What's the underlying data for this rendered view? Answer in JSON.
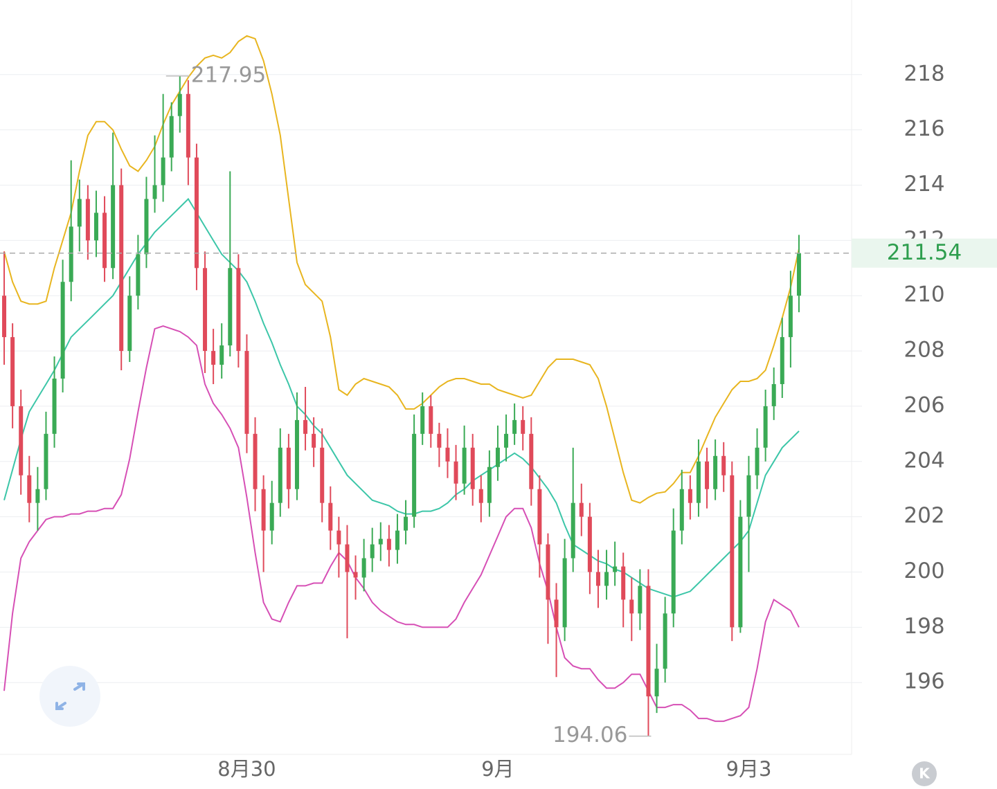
{
  "chart_data": {
    "type": "candlestick",
    "categories": [
      null,
      null,
      null,
      null,
      null,
      null,
      null,
      null,
      null,
      null,
      null,
      null,
      null,
      null,
      null,
      null,
      null,
      null,
      null,
      null,
      null,
      null,
      null,
      null,
      null,
      null,
      null,
      null,
      null,
      "8月30",
      null,
      null,
      null,
      null,
      null,
      null,
      null,
      null,
      null,
      null,
      null,
      null,
      null,
      null,
      null,
      null,
      null,
      null,
      null,
      null,
      null,
      null,
      null,
      null,
      null,
      null,
      null,
      null,
      null,
      "9月",
      null,
      null,
      null,
      null,
      null,
      null,
      null,
      null,
      null,
      null,
      null,
      null,
      null,
      null,
      null,
      null,
      null,
      null,
      null,
      null,
      null,
      null,
      null,
      null,
      null,
      null,
      null,
      null,
      null,
      "9月3",
      null,
      null,
      null,
      null,
      null,
      null
    ],
    "open": [
      210,
      208.5,
      206,
      203.5,
      202.5,
      203,
      205,
      207,
      210.5,
      212.5,
      213.5,
      212,
      213,
      211,
      214,
      208,
      210,
      211.5,
      213.5,
      214,
      215,
      216.5,
      217.3,
      215,
      211,
      208,
      207.5,
      208.2,
      211,
      208,
      205,
      203,
      201.5,
      202.5,
      204.5,
      203,
      205.5,
      205,
      204.5,
      202.5,
      201.5,
      201,
      200,
      199.8,
      200.5,
      201,
      201.2,
      200.8,
      201.5,
      202,
      205,
      206,
      205,
      204.5,
      204,
      203.2,
      204.5,
      203,
      202.5,
      203.8,
      204.5,
      205,
      205.5,
      205,
      203,
      201,
      199,
      198,
      200.5,
      202.5,
      202,
      200,
      199.5,
      200,
      200.2,
      199,
      198.5,
      199.5,
      195.5,
      196.5,
      198.5,
      201.5,
      203,
      202.5,
      204,
      203,
      204.2,
      203.5,
      198,
      202,
      203.5,
      204.5,
      206,
      206.8,
      208.5,
      210
    ],
    "high": [
      211.6,
      209,
      206.6,
      204.2,
      203.8,
      205.8,
      207.8,
      211.3,
      214.9,
      214.2,
      214,
      213.8,
      213.6,
      215.9,
      214.6,
      210.7,
      212.2,
      214.3,
      215.8,
      217.3,
      217,
      217.95,
      217.8,
      215.5,
      211.6,
      208.8,
      209,
      214.5,
      211.5,
      208.6,
      205.6,
      203.5,
      203.3,
      205.2,
      205,
      206.5,
      206.7,
      205.6,
      205.2,
      203.1,
      202,
      201.7,
      200.6,
      201.2,
      201.6,
      201.8,
      201.7,
      202.1,
      202.6,
      205.7,
      206.5,
      206.4,
      205.4,
      205.2,
      204.6,
      205.3,
      205,
      203.5,
      204.4,
      205.3,
      205.7,
      206.1,
      206,
      205.6,
      203.5,
      201.4,
      199.6,
      201.2,
      204.5,
      203.2,
      202.5,
      200.8,
      200.8,
      201.1,
      200.7,
      199.8,
      200.1,
      200.1,
      197.4,
      199.1,
      202.3,
      203.7,
      203.5,
      204.8,
      204.5,
      204.8,
      204.7,
      204,
      202.6,
      204.2,
      205.2,
      206.6,
      207.4,
      209.2,
      210.9,
      212.2
    ],
    "low": [
      207.5,
      205.2,
      202.8,
      201.8,
      201.5,
      202.6,
      204.5,
      206.5,
      209.8,
      211.6,
      211.3,
      211.4,
      210.5,
      210.6,
      207.3,
      207.6,
      209.5,
      211,
      213,
      213.4,
      214.5,
      215.9,
      214,
      210.2,
      207.2,
      206.8,
      207,
      207.8,
      207.4,
      204.3,
      202.2,
      200,
      201,
      202,
      202.3,
      202.6,
      204.4,
      203.8,
      201.8,
      200.8,
      199.8,
      197.6,
      199,
      199.3,
      200,
      200.4,
      200.2,
      200.3,
      201,
      201.6,
      204.6,
      204.5,
      203.8,
      203.4,
      202.6,
      202.8,
      202.4,
      201.8,
      202,
      203.3,
      204,
      204.6,
      204.4,
      202.4,
      199.8,
      197.4,
      196.2,
      197.5,
      200,
      201.3,
      199.2,
      198.7,
      199,
      199.5,
      198,
      197.5,
      197.9,
      194.06,
      194.9,
      196,
      198,
      201,
      201.9,
      202,
      202.3,
      202.6,
      202.9,
      197.5,
      197.8,
      200,
      203,
      204,
      205.5,
      206.3,
      207.4,
      209.4
    ],
    "close": [
      208.5,
      206,
      203.5,
      202.5,
      203,
      205,
      207,
      210.5,
      212.5,
      213.5,
      212,
      213,
      211,
      214,
      208,
      210,
      211.5,
      213.5,
      214,
      215,
      216.5,
      217.3,
      215,
      211,
      208,
      207.5,
      208.2,
      211,
      208,
      205,
      203,
      201.5,
      202.5,
      204.5,
      203,
      205.5,
      205,
      204.5,
      202.5,
      201.5,
      201,
      200,
      199.8,
      200.5,
      201,
      201.2,
      200.8,
      201.5,
      202,
      205,
      206,
      205,
      204.5,
      204,
      203.2,
      204.5,
      203,
      202.5,
      203.8,
      204.5,
      205,
      205.5,
      205,
      203,
      201,
      199,
      198,
      200.5,
      202.5,
      202,
      200,
      199.5,
      200,
      200.2,
      199,
      198.5,
      199.5,
      195.5,
      196.5,
      198.5,
      201.5,
      203,
      202.5,
      204,
      203,
      204.2,
      203.5,
      198,
      202,
      203.5,
      204.5,
      206,
      206.8,
      208.5,
      210,
      211.54
    ],
    "up_color": "#3aaa55",
    "down_color": "#e04a5a",
    "overlays": [
      {
        "color": "#e8b51f",
        "values": [
          211.6,
          210.5,
          209.8,
          209.7,
          209.7,
          209.8,
          211,
          212,
          213,
          214.5,
          215.8,
          216.3,
          216.3,
          216,
          215.3,
          214.7,
          214.5,
          214.9,
          215.4,
          216.2,
          216.9,
          217.4,
          217.9,
          218.3,
          218.6,
          218.7,
          218.6,
          218.8,
          219.2,
          219.4,
          219.3,
          218.5,
          217.3,
          215.8,
          213.5,
          211.2,
          210.4,
          210.1,
          209.8,
          208.5,
          206.6,
          206.4,
          206.8,
          207,
          206.9,
          206.8,
          206.7,
          206.4,
          205.9,
          205.9,
          206.1,
          206.4,
          206.7,
          206.9,
          207,
          207,
          206.9,
          206.8,
          206.8,
          206.6,
          206.5,
          206.4,
          206.3,
          206.4,
          206.9,
          207.4,
          207.7,
          207.7,
          207.7,
          207.6,
          207.5,
          207,
          206,
          204.8,
          203.6,
          202.6,
          202.5,
          202.7,
          202.85,
          202.9,
          203.2,
          203.6,
          203.6,
          204.2,
          204.9,
          205.6,
          206.1,
          206.6,
          206.9,
          206.9,
          207,
          207.3,
          208.2,
          209.2,
          210.3,
          211.7
        ]
      },
      {
        "color": "#3cc6a8",
        "values": [
          202.6,
          203.7,
          204.8,
          205.8,
          206.3,
          206.8,
          207.3,
          207.9,
          208.5,
          208.8,
          209.1,
          209.4,
          209.7,
          210,
          210.5,
          211,
          211.5,
          211.9,
          212.3,
          212.6,
          212.9,
          213.2,
          213.5,
          213,
          212.5,
          212,
          211.5,
          211.2,
          210.9,
          210.5,
          209.8,
          209,
          208.3,
          207.5,
          206.8,
          206,
          205.7,
          205.3,
          205,
          204.5,
          204,
          203.5,
          203.2,
          202.9,
          202.6,
          202.5,
          202.4,
          202.2,
          202.1,
          202.1,
          202.2,
          202.2,
          202.3,
          202.5,
          202.8,
          203,
          203.3,
          203.5,
          203.7,
          203.9,
          204.1,
          204.3,
          204.1,
          203.8,
          203.4,
          203,
          202.5,
          201.7,
          201,
          200.8,
          200.6,
          200.4,
          200.3,
          200.1,
          200,
          199.8,
          199.6,
          199.4,
          199.3,
          199.2,
          199.1,
          199.2,
          199.3,
          199.6,
          199.9,
          200.2,
          200.5,
          200.8,
          201.1,
          201.5,
          202.5,
          203.5,
          204,
          204.5,
          204.8,
          205.1
        ]
      },
      {
        "color": "#d64fb5",
        "values": [
          195.7,
          198.5,
          200.5,
          201.1,
          201.5,
          201.9,
          202,
          202,
          202.1,
          202.1,
          202.2,
          202.2,
          202.3,
          202.3,
          202.8,
          204.1,
          205.8,
          207.4,
          208.8,
          208.9,
          208.8,
          208.7,
          208.5,
          208.2,
          206.8,
          206.1,
          205.7,
          205.2,
          204.5,
          202.7,
          200.7,
          198.9,
          198.3,
          198.2,
          198.9,
          199.5,
          199.5,
          199.6,
          199.6,
          200.2,
          200.7,
          200.4,
          199.8,
          199.4,
          198.9,
          198.6,
          198.4,
          198.2,
          198.1,
          198.1,
          198,
          198,
          198,
          198,
          198.3,
          198.9,
          199.4,
          199.9,
          200.6,
          201.3,
          202,
          202.3,
          202.3,
          201.6,
          200.3,
          199.3,
          198,
          196.9,
          196.6,
          196.5,
          196.5,
          196.1,
          195.8,
          195.8,
          196,
          196.3,
          196.3,
          195.7,
          195.1,
          195.1,
          195.2,
          195.2,
          195,
          194.7,
          194.7,
          194.6,
          194.6,
          194.7,
          194.8,
          195.1,
          196.5,
          198.2,
          199,
          198.8,
          198.6,
          198
        ]
      }
    ],
    "ylim": [
      193.4,
      220.7
    ],
    "yticks": [
      196,
      198,
      200,
      202,
      204,
      206,
      208,
      210,
      212,
      214,
      216,
      218
    ],
    "grid": true,
    "price_color": "#2e9e4e"
  },
  "ui": {
    "k_button": "K"
  }
}
